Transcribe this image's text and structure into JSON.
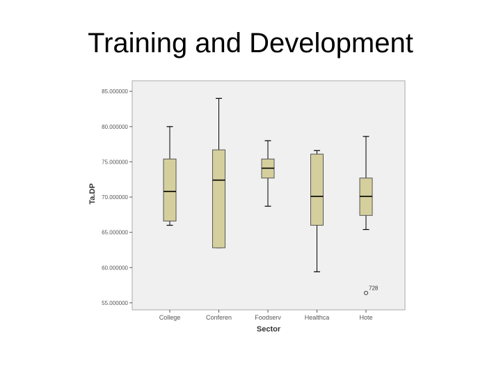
{
  "slide": {
    "title": "Training and Development"
  },
  "chart_data": {
    "type": "box",
    "xlabel": "Sector",
    "ylabel": "Ta.DP",
    "ylim": [
      54,
      86.5
    ],
    "yticks": [
      55,
      60,
      65,
      70,
      75,
      80,
      85
    ],
    "ytick_labels": [
      "55.000000",
      "60.000000",
      "65.000000",
      "70.000000",
      "75.000000",
      "80.000000",
      "85.000000"
    ],
    "categories": [
      "College",
      "Conferen",
      "Foodserv",
      "Healthca",
      "Hote"
    ],
    "boxes": [
      {
        "category": "College",
        "whisker_low": 66.0,
        "q1": 66.6,
        "median": 70.8,
        "q3": 75.4,
        "whisker_high": 80.0
      },
      {
        "category": "Conferen",
        "whisker_low": 62.8,
        "q1": 62.8,
        "median": 72.4,
        "q3": 76.7,
        "whisker_high": 84.0
      },
      {
        "category": "Foodserv",
        "whisker_low": 68.7,
        "q1": 72.7,
        "median": 74.1,
        "q3": 75.4,
        "whisker_high": 78.0
      },
      {
        "category": "Healthca",
        "whisker_low": 59.4,
        "q1": 66.0,
        "median": 70.1,
        "q3": 76.1,
        "whisker_high": 76.6
      },
      {
        "category": "Hote",
        "whisker_low": 65.4,
        "q1": 67.4,
        "median": 70.1,
        "q3": 72.7,
        "whisker_high": 78.6
      }
    ],
    "outliers": [
      {
        "category": "Hote",
        "value": 56.4,
        "label": "728"
      }
    ],
    "colors": {
      "box_fill": "#d4cf9d",
      "plot_bg": "#f0f0f0",
      "line": "#000000"
    },
    "grid": false,
    "legend": "none"
  }
}
